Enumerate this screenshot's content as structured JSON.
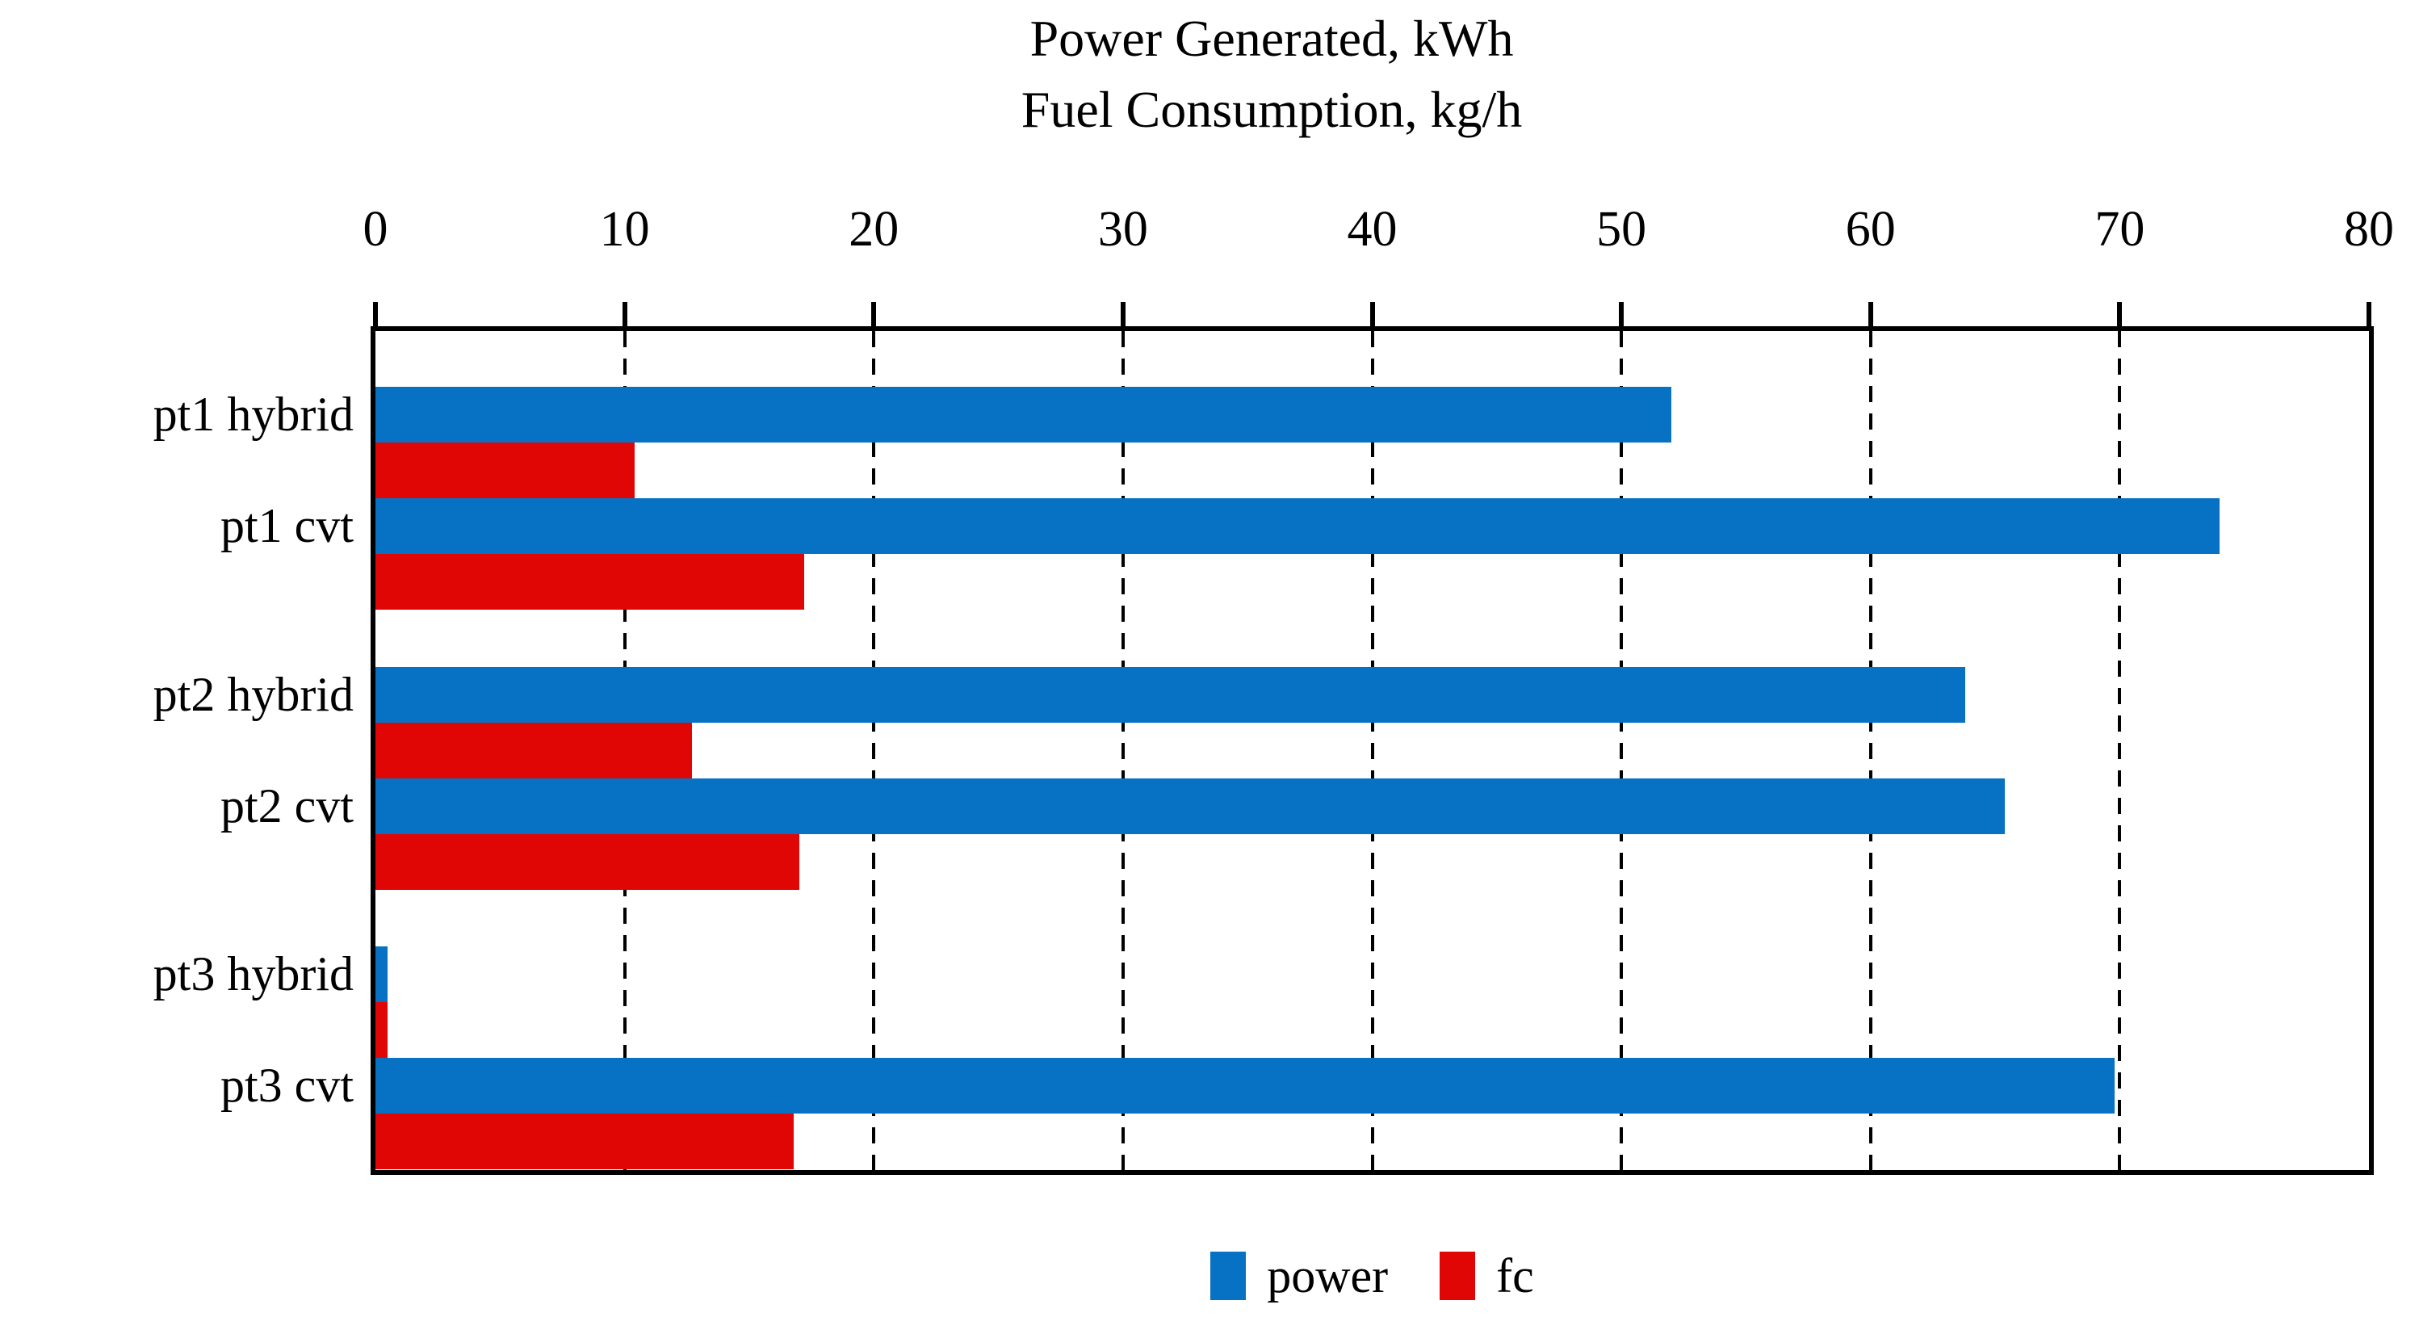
{
  "chart_data": {
    "type": "bar",
    "orientation": "horizontal",
    "title_lines": [
      "Power Generated, kWh",
      "Fuel Consumption, kg/h"
    ],
    "categories": [
      "pt1 hybrid",
      "pt1 cvt",
      "pt2 hybrid",
      "pt2 cvt",
      "pt3 hybrid",
      "pt3 cvt"
    ],
    "series": [
      {
        "name": "power",
        "color": "#0772c4",
        "values": [
          52,
          74,
          63.8,
          65.4,
          0.5,
          69.8
        ]
      },
      {
        "name": "fc",
        "color": "#e00606",
        "values": [
          10.4,
          17.2,
          12.7,
          17,
          0.5,
          16.8
        ]
      }
    ],
    "x_axis": {
      "min": 0,
      "max": 80,
      "tick_step": 10,
      "tick_labels": [
        "0",
        "10",
        "20",
        "30",
        "40",
        "50",
        "60",
        "70",
        "80"
      ]
    },
    "grid": {
      "vertical_dashed_at": [
        10,
        20,
        30,
        40,
        50,
        60,
        70
      ]
    },
    "legend": {
      "position": "bottom",
      "entries": [
        "power",
        "fc"
      ]
    },
    "axis_color": "#000000",
    "background": "#ffffff"
  }
}
